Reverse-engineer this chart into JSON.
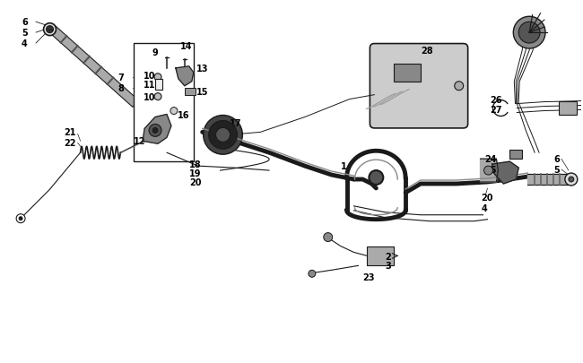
{
  "bg_color": "#ffffff",
  "line_color": "#1a1a1a",
  "label_color": "#000000",
  "fig_width": 6.5,
  "fig_height": 4.06,
  "dpi": 100
}
